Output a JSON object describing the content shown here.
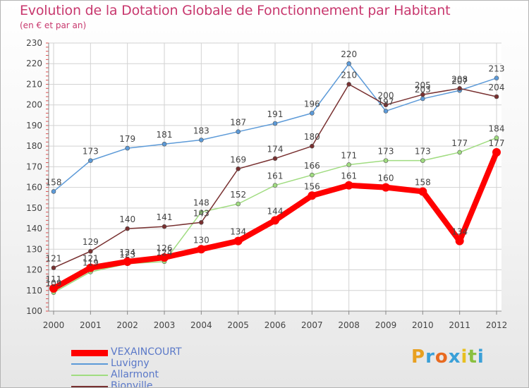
{
  "title": "Evolution de la Dotation Globale de Fonctionnement par Habitant",
  "subtitle": "(en € et par an)",
  "logo": {
    "text_parts": [
      "P",
      "r",
      "o",
      "x",
      "i",
      "t",
      "i"
    ],
    "colors": [
      "#e8a020",
      "#3aa0d8",
      "#e86a20",
      "#3aa0d8",
      "#e8c020",
      "#8ac040",
      "#3aa0d8"
    ]
  },
  "chart_data": {
    "type": "line",
    "title": "Evolution de la Dotation Globale de Fonctionnement par Habitant",
    "subtitle": "(en € et par an)",
    "xlabel": "",
    "ylabel": "",
    "x": [
      "2000",
      "2001",
      "2002",
      "2003",
      "2004",
      "2005",
      "2006",
      "2007",
      "2008",
      "2009",
      "2010",
      "2011",
      "2012"
    ],
    "ylim": [
      100,
      230
    ],
    "yticks": [
      "100",
      "110",
      "120",
      "130",
      "140",
      "150",
      "160",
      "170",
      "180",
      "190",
      "200",
      "210",
      "220",
      "230"
    ],
    "grid": true,
    "legend_position": "bottom-left",
    "series": [
      {
        "name": "VEXAINCOURT",
        "color": "#ff0000",
        "emphasis": true,
        "values": [
          111,
          121,
          124,
          126,
          130,
          134,
          144,
          156,
          161,
          160,
          158,
          134,
          177
        ],
        "labels": [
          "111",
          "121",
          "124",
          "126",
          "130",
          "134",
          "144",
          "156",
          "161",
          "160",
          "158",
          "134",
          "177"
        ]
      },
      {
        "name": "Luvigny",
        "color": "#5c9ad8",
        "values": [
          158,
          173,
          179,
          181,
          183,
          187,
          191,
          196,
          220,
          197,
          203,
          207,
          213
        ],
        "labels": [
          "158",
          "173",
          "179",
          "181",
          "183",
          "187",
          "191",
          "196",
          "220",
          "197",
          "203",
          "207",
          "213"
        ]
      },
      {
        "name": "Allarmont",
        "color": "#a0dc80",
        "values": [
          109,
          119,
          123,
          124,
          148,
          152,
          161,
          166,
          171,
          173,
          173,
          177,
          184
        ],
        "labels": [
          "109",
          "119",
          "123",
          "124",
          "148",
          "152",
          "161",
          "166",
          "171",
          "173",
          "173",
          "177",
          "184"
        ]
      },
      {
        "name": "Bionville",
        "color": "#783030",
        "values": [
          121,
          129,
          140,
          141,
          143,
          169,
          174,
          180,
          210,
          200,
          205,
          208,
          204
        ],
        "labels": [
          "121",
          "129",
          "140",
          "141",
          "143",
          "169",
          "174",
          "180",
          "210",
          "200",
          "205",
          "208",
          "204"
        ]
      }
    ]
  }
}
